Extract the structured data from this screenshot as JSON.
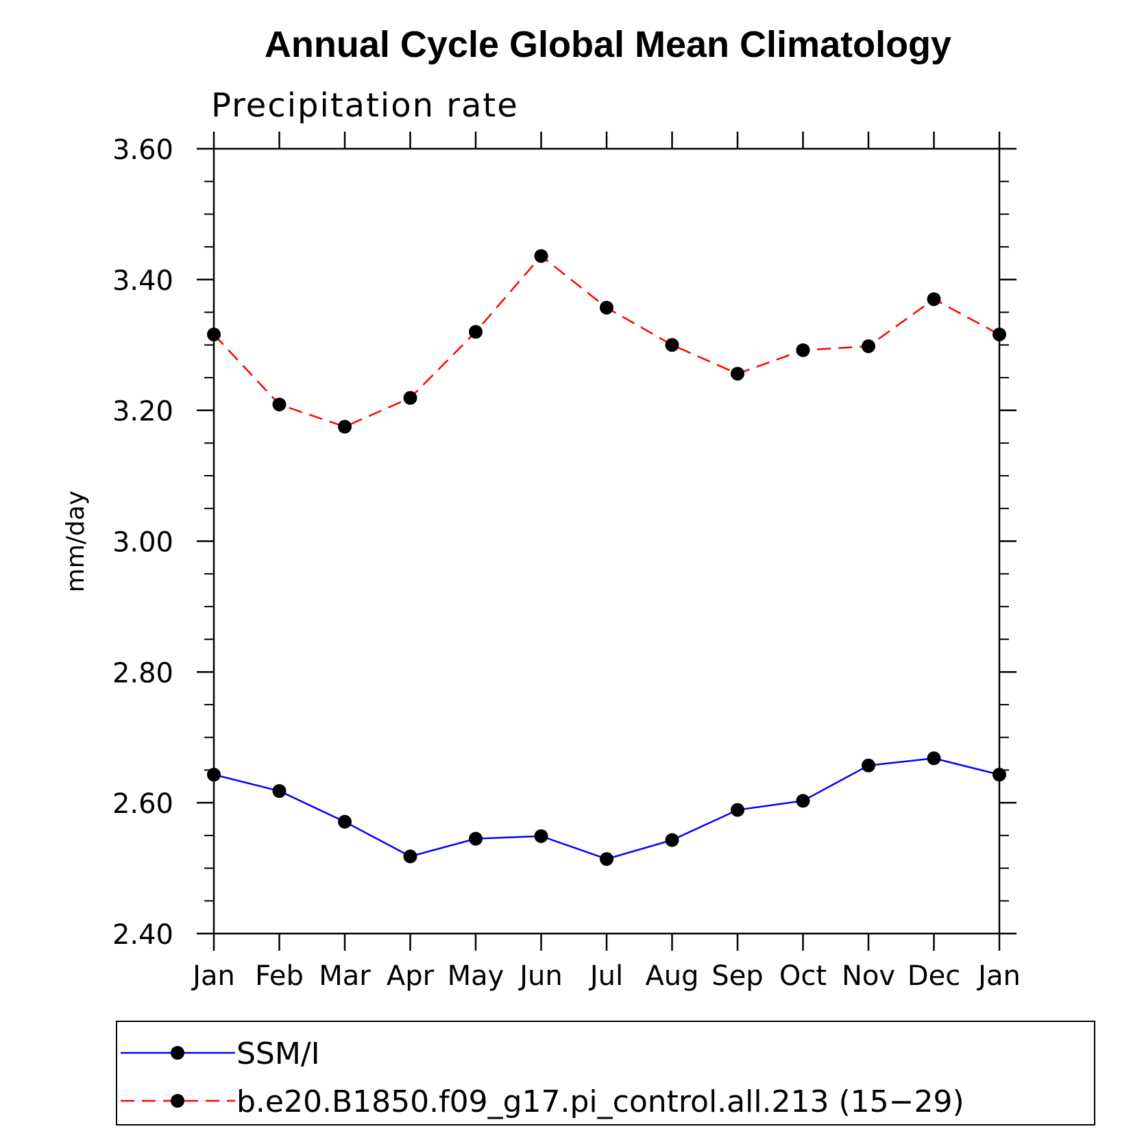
{
  "chart_data": {
    "type": "line",
    "title": "Annual Cycle Global Mean Climatology",
    "subtitle": "Precipitation rate",
    "ylabel": "mm/day",
    "xlabel": "",
    "categories": [
      "Jan",
      "Feb",
      "Mar",
      "Apr",
      "May",
      "Jun",
      "Jul",
      "Aug",
      "Sep",
      "Oct",
      "Nov",
      "Dec",
      "Jan"
    ],
    "ylim": [
      2.4,
      3.6
    ],
    "yticks": [
      "2.40",
      "2.60",
      "2.80",
      "3.00",
      "3.20",
      "3.40",
      "3.60"
    ],
    "series": [
      {
        "name": "SSM/I",
        "color": "#0000ff",
        "dash": "solid",
        "values": [
          2.643,
          2.618,
          2.571,
          2.518,
          2.545,
          2.549,
          2.514,
          2.543,
          2.589,
          2.603,
          2.657,
          2.668,
          2.643
        ]
      },
      {
        "name": "b.e20.B1850.f09_g17.pi_control.all.213 (15−29)",
        "color": "#ff0000",
        "dash": "dashed",
        "values": [
          3.316,
          3.209,
          3.175,
          3.219,
          3.32,
          3.436,
          3.357,
          3.3,
          3.256,
          3.292,
          3.298,
          3.37,
          3.316
        ]
      }
    ],
    "legend_position": "bottom"
  }
}
